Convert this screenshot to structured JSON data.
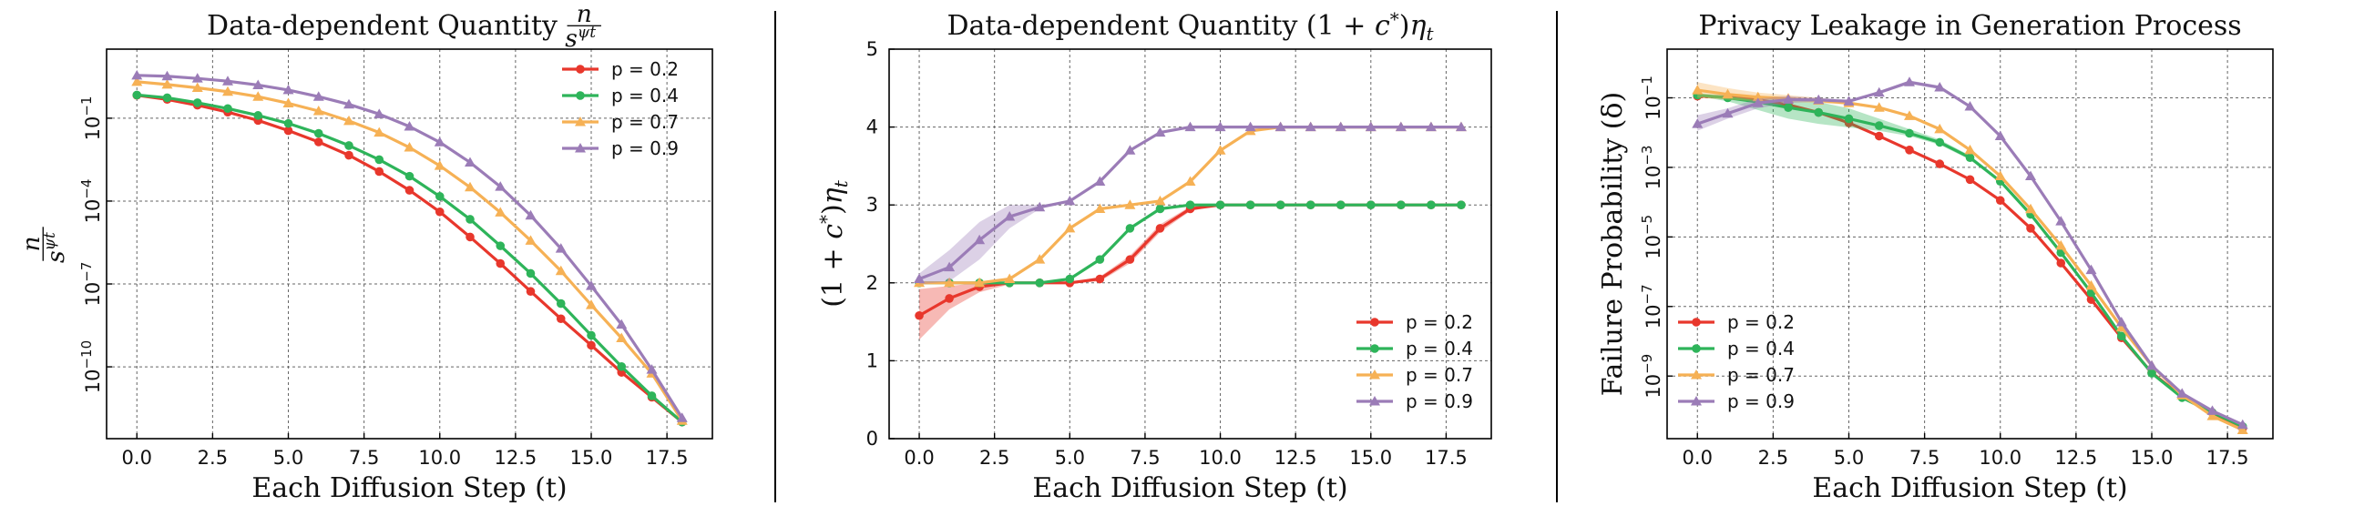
{
  "chart_data": [
    {
      "type": "line",
      "title": "Data-dependent Quantity n / s^ψt",
      "title_text": "Data-dependent Quantity",
      "title_math": {
        "num": "n",
        "den": "s",
        "den_sup": "ψt"
      },
      "xlabel": "Each Diffusion Step (t)",
      "ylabel_math": {
        "num": "n",
        "den": "s",
        "den_sup": "ψt"
      },
      "yscale": "log",
      "xlim": [
        -1,
        19
      ],
      "ylim_exp": [
        -12.6,
        1.5
      ],
      "xticks": [
        "0.0",
        "2.5",
        "5.0",
        "7.5",
        "10.0",
        "12.5",
        "15.0",
        "17.5"
      ],
      "yticks": [
        {
          "exp": -10,
          "label": "10",
          "sup": "−10"
        },
        {
          "exp": -7,
          "label": "10",
          "sup": "−7"
        },
        {
          "exp": -4,
          "label": "10",
          "sup": "−4"
        },
        {
          "exp": -1,
          "label": "10",
          "sup": "−1"
        }
      ],
      "grid": true,
      "legend_position": "top-right",
      "x": [
        0,
        1,
        2,
        3,
        4,
        5,
        6,
        7,
        8,
        9,
        10,
        11,
        12,
        13,
        14,
        15,
        16,
        17,
        18
      ],
      "series": [
        {
          "name": "p = 0.2",
          "color": "#e8372c",
          "marker": "circle",
          "log10_values": [
            -0.17,
            -0.32,
            -0.53,
            -0.78,
            -1.08,
            -1.45,
            -1.86,
            -2.34,
            -2.93,
            -3.61,
            -4.39,
            -5.3,
            -6.26,
            -7.27,
            -8.26,
            -9.22,
            -10.2,
            -11.1,
            -12.0
          ]
        },
        {
          "name": "p = 0.4",
          "color": "#2eb45a",
          "marker": "circle",
          "log10_values": [
            -0.16,
            -0.26,
            -0.44,
            -0.65,
            -0.9,
            -1.19,
            -1.55,
            -1.99,
            -2.5,
            -3.1,
            -3.83,
            -4.66,
            -5.62,
            -6.62,
            -7.71,
            -8.86,
            -9.99,
            -11.05,
            -12.0
          ]
        },
        {
          "name": "p = 0.7",
          "color": "#f6b155",
          "marker": "triangle",
          "log10_values": [
            0.32,
            0.22,
            0.1,
            -0.04,
            -0.22,
            -0.46,
            -0.74,
            -1.1,
            -1.52,
            -2.06,
            -2.72,
            -3.5,
            -4.41,
            -5.43,
            -6.53,
            -7.76,
            -8.96,
            -10.24,
            -11.95
          ]
        },
        {
          "name": "p = 0.9",
          "color": "#9b7cb7",
          "marker": "triangle",
          "log10_values": [
            0.55,
            0.52,
            0.44,
            0.34,
            0.2,
            0.02,
            -0.22,
            -0.5,
            -0.85,
            -1.3,
            -1.87,
            -2.6,
            -3.48,
            -4.52,
            -5.72,
            -7.07,
            -8.47,
            -10.1,
            -11.85
          ]
        }
      ]
    },
    {
      "type": "line",
      "title": "Data-dependent Quantity (1 + c*)ηt",
      "title_text": "Data-dependent Quantity",
      "title_math": "(1 + c*)ηt",
      "xlabel": "Each Diffusion Step (t)",
      "ylabel_math": "(1 + c*)ηt",
      "ylim": [
        0,
        5
      ],
      "xlim": [
        -1,
        19
      ],
      "xticks": [
        "0.0",
        "2.5",
        "5.0",
        "7.5",
        "10.0",
        "12.5",
        "15.0",
        "17.5"
      ],
      "yticks": [
        "0",
        "1",
        "2",
        "3",
        "4",
        "5"
      ],
      "grid": true,
      "legend_position": "bottom-right",
      "x": [
        0,
        1,
        2,
        3,
        4,
        5,
        6,
        7,
        8,
        9,
        10,
        11,
        12,
        13,
        14,
        15,
        16,
        17,
        18
      ],
      "series": [
        {
          "name": "p = 0.2",
          "color": "#e8372c",
          "marker": "circle",
          "values": [
            1.58,
            1.8,
            1.95,
            2.0,
            2.0,
            2.0,
            2.05,
            2.3,
            2.7,
            2.95,
            3.0,
            3.0,
            3.0,
            3.0,
            3.0,
            3.0,
            3.0,
            3.0,
            3.0
          ],
          "band_low": [
            1.27,
            1.66,
            1.88,
            1.98,
            2.0,
            2.0,
            2.02,
            2.25,
            2.65,
            2.92,
            3.0,
            3.0,
            3.0,
            3.0,
            3.0,
            3.0,
            3.0,
            3.0,
            3.0
          ],
          "band_high": [
            1.92,
            1.96,
            2.0,
            2.0,
            2.0,
            2.0,
            2.08,
            2.35,
            2.75,
            2.98,
            3.0,
            3.0,
            3.0,
            3.0,
            3.0,
            3.0,
            3.0,
            3.0,
            3.0
          ]
        },
        {
          "name": "p = 0.4",
          "color": "#2eb45a",
          "marker": "circle",
          "values": [
            2.0,
            2.0,
            2.0,
            2.0,
            2.0,
            2.05,
            2.3,
            2.7,
            2.95,
            3.0,
            3.0,
            3.0,
            3.0,
            3.0,
            3.0,
            3.0,
            3.0,
            3.0,
            3.0
          ]
        },
        {
          "name": "p = 0.7",
          "color": "#f6b155",
          "marker": "triangle",
          "values": [
            2.0,
            2.0,
            2.0,
            2.05,
            2.3,
            2.7,
            2.95,
            3.0,
            3.05,
            3.3,
            3.7,
            3.95,
            4.0,
            4.0,
            4.0,
            4.0,
            4.0,
            4.0,
            4.0
          ]
        },
        {
          "name": "p = 0.9",
          "color": "#9b7cb7",
          "marker": "triangle",
          "values": [
            2.05,
            2.2,
            2.55,
            2.85,
            2.97,
            3.05,
            3.3,
            3.7,
            3.93,
            4.0,
            4.0,
            4.0,
            4.0,
            4.0,
            4.0,
            4.0,
            4.0,
            4.0,
            4.0
          ],
          "band_low": [
            1.98,
            2.02,
            2.3,
            2.7,
            2.95,
            3.05,
            3.3,
            3.7,
            3.93,
            4.0,
            4.0,
            4.0,
            4.0,
            4.0,
            4.0,
            4.0,
            4.0,
            4.0,
            4.0
          ],
          "band_high": [
            2.12,
            2.42,
            2.78,
            3.0,
            3.0,
            3.05,
            3.3,
            3.7,
            3.93,
            4.0,
            4.0,
            4.0,
            4.0,
            4.0,
            4.0,
            4.0,
            4.0,
            4.0,
            4.0
          ]
        }
      ]
    },
    {
      "type": "line",
      "title": "Privacy Leakage in Generation Process",
      "xlabel": "Each Diffusion Step (t)",
      "ylabel": "Failure Probability (δ)",
      "yscale": "log",
      "xlim": [
        -1,
        19
      ],
      "ylim_exp": [
        -10.8,
        0.4
      ],
      "xticks": [
        "0.0",
        "2.5",
        "5.0",
        "7.5",
        "10.0",
        "12.5",
        "15.0",
        "17.5"
      ],
      "yticks": [
        {
          "exp": -9,
          "label": "10",
          "sup": "−9"
        },
        {
          "exp": -7,
          "label": "10",
          "sup": "−7"
        },
        {
          "exp": -5,
          "label": "10",
          "sup": "−5"
        },
        {
          "exp": -3,
          "label": "10",
          "sup": "−3"
        },
        {
          "exp": -1,
          "label": "10",
          "sup": "−1"
        }
      ],
      "grid": true,
      "legend_position": "bottom-left",
      "x": [
        0,
        1,
        2,
        3,
        4,
        5,
        6,
        7,
        8,
        9,
        10,
        11,
        12,
        13,
        14,
        15,
        16,
        17,
        18
      ],
      "series": [
        {
          "name": "p = 0.2",
          "color": "#e8372c",
          "marker": "circle",
          "log10_values": [
            -0.95,
            -0.98,
            -1.05,
            -1.2,
            -1.42,
            -1.72,
            -2.1,
            -2.5,
            -2.9,
            -3.35,
            -3.95,
            -4.75,
            -5.75,
            -6.8,
            -7.9,
            -8.9,
            -9.6,
            -10.05,
            -10.5
          ]
        },
        {
          "name": "p = 0.4",
          "color": "#2eb45a",
          "marker": "circle",
          "log10_values": [
            -0.92,
            -1.0,
            -1.12,
            -1.28,
            -1.42,
            -1.6,
            -1.8,
            -2.02,
            -2.28,
            -2.72,
            -3.4,
            -4.35,
            -5.45,
            -6.6,
            -7.85,
            -8.92,
            -9.62,
            -10.05,
            -10.45
          ],
          "band_low": [
            -0.95,
            -1.1,
            -1.35,
            -1.6,
            -1.75,
            -1.85,
            -1.95,
            -2.1,
            -2.35,
            -2.78,
            -3.45,
            -4.4,
            -5.5,
            -6.65,
            -7.88,
            -8.95,
            -9.65,
            -10.08,
            -10.5
          ],
          "band_high": [
            -0.88,
            -0.92,
            -0.98,
            -1.05,
            -1.12,
            -1.3,
            -1.6,
            -1.9,
            -2.2,
            -2.66,
            -3.35,
            -4.3,
            -5.4,
            -6.55,
            -7.82,
            -8.9,
            -9.6,
            -10.02,
            -10.4
          ]
        },
        {
          "name": "p = 0.7",
          "color": "#f6b155",
          "marker": "triangle",
          "log10_values": [
            -0.78,
            -0.9,
            -0.98,
            -1.02,
            -1.08,
            -1.15,
            -1.28,
            -1.52,
            -1.9,
            -2.5,
            -3.25,
            -4.2,
            -5.25,
            -6.4,
            -7.6,
            -8.7,
            -9.55,
            -10.15,
            -10.55
          ],
          "band_low": [
            -1.0,
            -1.05,
            -1.1,
            -1.12,
            -1.15,
            -1.2,
            -1.3,
            -1.55,
            -1.92,
            -2.52,
            -3.28,
            -4.22,
            -5.28,
            -6.42,
            -7.62,
            -8.72,
            -9.58,
            -10.18,
            -10.6
          ],
          "band_high": [
            -0.55,
            -0.72,
            -0.85,
            -0.92,
            -1.0,
            -1.1,
            -1.25,
            -1.5,
            -1.88,
            -2.48,
            -3.22,
            -4.18,
            -5.22,
            -6.38,
            -7.58,
            -8.68,
            -9.52,
            -10.12,
            -10.5
          ]
        },
        {
          "name": "p = 0.9",
          "color": "#9b7cb7",
          "marker": "triangle",
          "log10_values": [
            -1.75,
            -1.45,
            -1.15,
            -1.05,
            -1.06,
            -1.1,
            -0.85,
            -0.55,
            -0.7,
            -1.25,
            -2.1,
            -3.25,
            -4.55,
            -5.95,
            -7.45,
            -8.7,
            -9.5,
            -10.0,
            -10.4
          ],
          "band_low": [
            -1.95,
            -1.6,
            -1.3,
            -1.15,
            -1.1,
            -1.12,
            -0.88,
            -0.6,
            -0.75,
            -1.28,
            -2.13,
            -3.28,
            -4.58,
            -5.98,
            -7.48,
            -8.72,
            -9.52,
            -10.02,
            -10.45
          ],
          "band_high": [
            -1.5,
            -1.3,
            -1.02,
            -0.95,
            -1.0,
            -1.05,
            -0.8,
            -0.5,
            -0.65,
            -1.2,
            -2.07,
            -3.22,
            -4.52,
            -5.92,
            -7.42,
            -8.68,
            -9.48,
            -9.98,
            -10.35
          ]
        }
      ]
    }
  ]
}
